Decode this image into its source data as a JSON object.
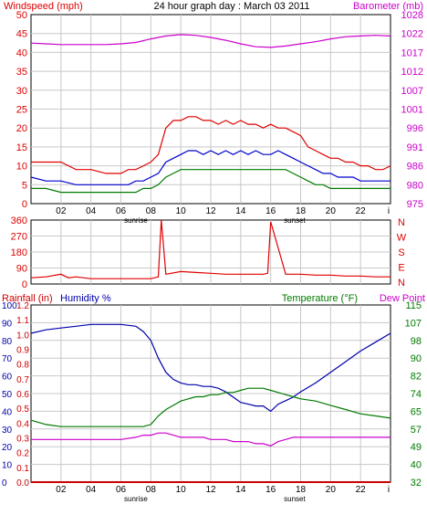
{
  "header": {
    "title": "24 hour graph day : March 03 2011"
  },
  "colors": {
    "wind_red": "#e00000",
    "avg_blue": "#0000cc",
    "green": "#007a00",
    "baro_magenta": "#cc00cc",
    "rain_red": "#cc0000",
    "humidity_blue": "#0000aa",
    "grid": "#c8c8c8"
  },
  "x_axis": {
    "ticks": [
      "02",
      "04",
      "06",
      "08",
      "10",
      "12",
      "14",
      "16",
      "18",
      "20",
      "22"
    ],
    "end_label": "i",
    "sunrise_label": "sunrise",
    "sunset_label": "sunset"
  },
  "chart_data": [
    {
      "type": "line",
      "left_label": "Windspeed (mph)",
      "right_label": "Barometer (mb)",
      "x_range": [
        0,
        24
      ],
      "left_ticks": [
        "50",
        "45",
        "40",
        "35",
        "30",
        "25",
        "20",
        "15",
        "10",
        "5",
        "0"
      ],
      "right_ticks": [
        "1028",
        "1022",
        "1017",
        "1012",
        "1007",
        "1001",
        "996",
        "991",
        "986",
        "980",
        "975"
      ],
      "ylim_left": [
        0,
        50
      ],
      "ylim_right": [
        975,
        1028
      ],
      "grid": true,
      "series": [
        {
          "color": "#e00000",
          "axis": "left",
          "x": [
            0,
            1,
            2,
            3,
            4,
            5,
            6,
            6.5,
            7,
            7.5,
            8,
            8.5,
            9,
            9.5,
            10,
            10.5,
            11,
            11.5,
            12,
            12.5,
            13,
            13.5,
            14,
            14.5,
            15,
            15.5,
            16,
            16.5,
            17,
            17.5,
            18,
            18.5,
            19,
            19.5,
            20,
            20.5,
            21,
            21.5,
            22,
            22.5,
            23,
            23.5,
            24
          ],
          "y": [
            11,
            11,
            11,
            9,
            9,
            8,
            8,
            9,
            9,
            10,
            11,
            13,
            20,
            22,
            22,
            23,
            23,
            22,
            22,
            21,
            22,
            21,
            22,
            21,
            21,
            20,
            21,
            20,
            20,
            19,
            18,
            15,
            14,
            13,
            12,
            12,
            11,
            11,
            10,
            10,
            9,
            9,
            10
          ]
        },
        {
          "color": "#0000cc",
          "axis": "left",
          "x": [
            0,
            1,
            2,
            3,
            4,
            5,
            6,
            6.5,
            7,
            7.5,
            8,
            8.5,
            9,
            9.5,
            10,
            10.5,
            11,
            11.5,
            12,
            12.5,
            13,
            13.5,
            14,
            14.5,
            15,
            15.5,
            16,
            16.5,
            17,
            17.5,
            18,
            18.5,
            19,
            19.5,
            20,
            20.5,
            21,
            21.5,
            22,
            22.5,
            23,
            23.5,
            24
          ],
          "y": [
            7,
            6,
            6,
            5,
            5,
            5,
            5,
            5,
            6,
            6,
            7,
            8,
            11,
            12,
            13,
            14,
            14,
            13,
            14,
            13,
            14,
            13,
            14,
            13,
            14,
            13,
            13,
            14,
            13,
            12,
            11,
            10,
            9,
            8,
            8,
            7,
            7,
            7,
            6,
            6,
            6,
            6,
            6
          ]
        },
        {
          "color": "#007a00",
          "axis": "left",
          "x": [
            0,
            1,
            2,
            3,
            4,
            5,
            6,
            6.5,
            7,
            7.5,
            8,
            8.5,
            9,
            9.5,
            10,
            10.5,
            11,
            11.5,
            12,
            12.5,
            13,
            13.5,
            14,
            14.5,
            15,
            15.5,
            16,
            16.5,
            17,
            17.5,
            18,
            18.5,
            19,
            19.5,
            20,
            20.5,
            21,
            21.5,
            22,
            22.5,
            23,
            23.5,
            24
          ],
          "y": [
            4,
            4,
            3,
            3,
            3,
            3,
            3,
            3,
            3,
            4,
            4,
            5,
            7,
            8,
            9,
            9,
            9,
            9,
            9,
            9,
            9,
            9,
            9,
            9,
            9,
            9,
            9,
            9,
            9,
            8,
            7,
            6,
            5,
            5,
            4,
            4,
            4,
            4,
            4,
            4,
            4,
            4,
            4
          ]
        },
        {
          "color": "#cc00cc",
          "axis": "right",
          "x": [
            0,
            1,
            2,
            3,
            4,
            5,
            6,
            7,
            8,
            9,
            10,
            11,
            12,
            13,
            14,
            15,
            16,
            17,
            18,
            19,
            20,
            21,
            22,
            23,
            24
          ],
          "y": [
            1020.0,
            1019.8,
            1019.6,
            1019.6,
            1019.6,
            1019.6,
            1019.8,
            1020.2,
            1021.2,
            1022.0,
            1022.4,
            1022.2,
            1021.6,
            1020.8,
            1019.8,
            1019.0,
            1018.8,
            1019.2,
            1019.8,
            1020.4,
            1021.2,
            1021.8,
            1022.0,
            1022.2,
            1022.0
          ]
        }
      ]
    },
    {
      "type": "scatter",
      "left_ticks": [
        "360",
        "270",
        "180",
        "90",
        "0"
      ],
      "right_ticks": [
        "N",
        "W",
        "S",
        "E",
        "N"
      ],
      "ylim": [
        0,
        360
      ],
      "x_range": [
        0,
        24
      ],
      "grid": true,
      "series": [
        {
          "color": "#e00000",
          "x": [
            0,
            1,
            2,
            2.5,
            3,
            4,
            5,
            6,
            7,
            7.5,
            8,
            8.5,
            8.7,
            9,
            10,
            11,
            12,
            13,
            14,
            15,
            15.5,
            15.8,
            16,
            17,
            18,
            19,
            20,
            21,
            22,
            23,
            24
          ],
          "y": [
            35,
            40,
            55,
            35,
            40,
            30,
            30,
            30,
            30,
            30,
            30,
            40,
            360,
            55,
            70,
            65,
            60,
            55,
            55,
            55,
            55,
            60,
            350,
            55,
            55,
            50,
            50,
            45,
            45,
            40,
            40
          ]
        }
      ]
    },
    {
      "type": "line",
      "left_label": "Rainfall (in)",
      "middle_label": "Humidity %",
      "right_label": "Temperature (°F)",
      "right_label_2": "Dew Point",
      "x_range": [
        0,
        24
      ],
      "rain_ticks": [
        "1.2",
        "1.1",
        "1.0",
        "0.9",
        "0.8",
        "0.7",
        "0.6",
        "0.5",
        "0.4",
        "0.3",
        "0.2",
        "0.1",
        "0.0"
      ],
      "humidity_ticks": [
        "100",
        "90",
        "80",
        "70",
        "60",
        "50",
        "40",
        "30",
        "20",
        "10",
        "0"
      ],
      "temp_ticks": [
        "115",
        "107",
        "98",
        "90",
        "82",
        "74",
        "65",
        "57",
        "49",
        "40",
        "32"
      ],
      "ylim_humidity": [
        0,
        100
      ],
      "ylim_temp": [
        32,
        115
      ],
      "grid": true,
      "series": [
        {
          "color": "#0000aa",
          "axis": "humidity",
          "x": [
            0,
            1,
            2,
            3,
            4,
            5,
            6,
            7,
            7.5,
            8,
            8.5,
            9,
            9.5,
            10,
            10.5,
            11,
            11.5,
            12,
            12.5,
            13,
            13.5,
            14,
            14.5,
            15,
            15.5,
            16,
            16.5,
            17,
            17.5,
            18,
            19,
            20,
            21,
            22,
            23,
            24
          ],
          "y": [
            84,
            86,
            87,
            88,
            89,
            89,
            89,
            88,
            85,
            80,
            70,
            62,
            58,
            56,
            55,
            55,
            54,
            54,
            53,
            51,
            48,
            45,
            44,
            43,
            43,
            40,
            44,
            46,
            48,
            51,
            56,
            62,
            68,
            74,
            79,
            84
          ]
        },
        {
          "color": "#007a00",
          "axis": "temp",
          "x": [
            0,
            1,
            2,
            3,
            4,
            5,
            6,
            7,
            7.5,
            8,
            8.5,
            9,
            9.5,
            10,
            10.5,
            11,
            11.5,
            12,
            12.5,
            13,
            13.5,
            14,
            14.5,
            15,
            15.5,
            16,
            16.5,
            17,
            17.5,
            18,
            19,
            20,
            21,
            22,
            23,
            24
          ],
          "y": [
            61,
            59,
            58,
            58,
            58,
            58,
            58,
            58,
            58,
            59,
            63,
            66,
            68,
            70,
            71,
            72,
            72,
            73,
            73,
            74,
            74,
            75,
            76,
            76,
            76,
            75,
            74,
            73,
            72,
            71,
            70,
            68,
            66,
            64,
            63,
            62
          ]
        },
        {
          "color": "#cc00cc",
          "axis": "temp",
          "x": [
            0,
            1,
            2,
            3,
            4,
            5,
            6,
            7,
            7.5,
            8,
            8.5,
            9,
            9.5,
            10,
            10.5,
            11,
            11.5,
            12,
            12.5,
            13,
            13.5,
            14,
            14.5,
            15,
            15.5,
            16,
            16.5,
            17,
            17.5,
            18,
            19,
            20,
            21,
            22,
            23,
            24
          ],
          "y": [
            52,
            52,
            52,
            52,
            52,
            52,
            52,
            53,
            54,
            54,
            55,
            55,
            54,
            53,
            53,
            53,
            53,
            52,
            52,
            52,
            51,
            51,
            51,
            50,
            50,
            49,
            51,
            52,
            53,
            53,
            53,
            53,
            53,
            53,
            53,
            53
          ]
        },
        {
          "color": "#cc0000",
          "axis": "rain",
          "x": [
            0,
            24
          ],
          "y": [
            0,
            0
          ]
        }
      ]
    }
  ]
}
